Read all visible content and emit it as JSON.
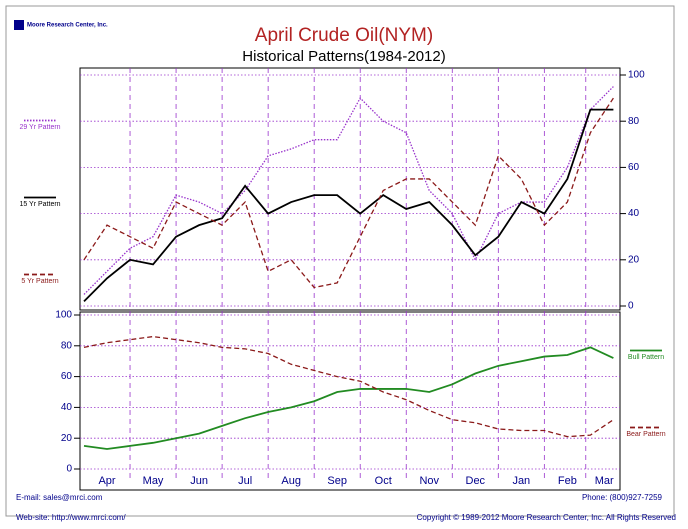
{
  "logo": "Moore Research Center, Inc.",
  "footer": {
    "email": "E-mail: sales@mrci.com",
    "phone": "Phone: (800)927-7259",
    "website": "Web-site: http://www.mrci.com/",
    "copyright": "Copyright © 1989-2012 Moore Research Center, Inc. All Rights Reserved"
  },
  "chart_data": [
    {
      "type": "line",
      "title": "April Crude Oil(NYM)",
      "subtitle": "Historical Patterns(1984-2012)",
      "x": [
        0,
        0.5,
        1,
        1.5,
        2,
        2.5,
        3,
        3.5,
        4,
        4.5,
        5,
        5.5,
        6,
        6.5,
        7,
        7.5,
        8,
        8.5,
        9,
        9.5,
        10,
        10.5,
        11,
        11.5
      ],
      "xlim": [
        0,
        11.6
      ],
      "y2lim": [
        0,
        100
      ],
      "y2ticks": [
        0,
        20,
        40,
        60,
        80,
        100
      ],
      "grid": true,
      "legend": "left",
      "series": [
        {
          "name": "29 Yr Pattern",
          "color": "#9933cc",
          "style": "dotted",
          "axis": "y2",
          "values": [
            5,
            15,
            25,
            30,
            48,
            45,
            40,
            50,
            65,
            68,
            72,
            72,
            90,
            80,
            75,
            50,
            40,
            20,
            40,
            45,
            45,
            60,
            85,
            95
          ]
        },
        {
          "name": "15 Yr Pattern",
          "color": "#000000",
          "style": "solid",
          "axis": "y2",
          "values": [
            2,
            12,
            20,
            18,
            30,
            35,
            38,
            52,
            40,
            45,
            48,
            48,
            40,
            48,
            42,
            45,
            35,
            22,
            30,
            45,
            40,
            55,
            85,
            85
          ]
        },
        {
          "name": "5 Yr Pattern",
          "color": "#8b1a1a",
          "style": "dashed",
          "axis": "y2",
          "values": [
            20,
            35,
            30,
            25,
            45,
            40,
            35,
            45,
            15,
            20,
            8,
            10,
            30,
            50,
            55,
            55,
            45,
            35,
            65,
            55,
            35,
            45,
            75,
            90
          ]
        }
      ]
    },
    {
      "type": "line",
      "x": [
        0,
        0.5,
        1,
        1.5,
        2,
        2.5,
        3,
        3.5,
        4,
        4.5,
        5,
        5.5,
        6,
        6.5,
        7,
        7.5,
        8,
        8.5,
        9,
        9.5,
        10,
        10.5,
        11,
        11.5
      ],
      "xlim": [
        0,
        11.6
      ],
      "xticks": [
        {
          "value": 0.5,
          "label": "Apr"
        },
        {
          "value": 1.5,
          "label": "May"
        },
        {
          "value": 2.5,
          "label": "Jun"
        },
        {
          "value": 3.5,
          "label": "Jul"
        },
        {
          "value": 4.5,
          "label": "Aug"
        },
        {
          "value": 5.5,
          "label": "Sep"
        },
        {
          "value": 6.5,
          "label": "Oct"
        },
        {
          "value": 7.5,
          "label": "Nov"
        },
        {
          "value": 8.5,
          "label": "Dec"
        },
        {
          "value": 9.5,
          "label": "Jan"
        },
        {
          "value": 10.5,
          "label": "Feb"
        },
        {
          "value": 11.3,
          "label": "Mar"
        }
      ],
      "ylim": [
        0,
        100
      ],
      "yticks": [
        0,
        20,
        40,
        60,
        80,
        100
      ],
      "grid": true,
      "legend": "right",
      "series": [
        {
          "name": "Bull Pattern",
          "color": "#228b22",
          "style": "solid",
          "values": [
            15,
            13,
            15,
            17,
            20,
            23,
            28,
            33,
            37,
            40,
            44,
            50,
            52,
            52,
            52,
            50,
            55,
            62,
            67,
            70,
            73,
            74,
            79,
            72
          ]
        },
        {
          "name": "Bear Pattern",
          "color": "#8b1a1a",
          "style": "dashed",
          "values": [
            79,
            82,
            84,
            86,
            84,
            82,
            79,
            78,
            75,
            68,
            64,
            60,
            57,
            50,
            45,
            38,
            32,
            30,
            26,
            25,
            25,
            21,
            22,
            32
          ]
        }
      ]
    }
  ]
}
